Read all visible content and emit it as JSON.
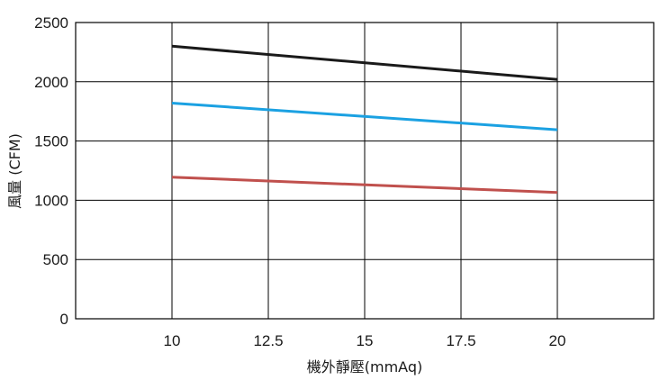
{
  "chart_data": {
    "type": "line",
    "title": "",
    "xlabel": "機外靜壓(mmAq)",
    "ylabel": "風量 (CFM)",
    "xlim": [
      7.5,
      22.5
    ],
    "ylim": [
      0,
      2500
    ],
    "x_ticks": [
      10,
      12.5,
      15,
      17.5,
      20
    ],
    "x_tick_labels": [
      "10",
      "12.5",
      "15",
      "17.5",
      "20"
    ],
    "y_ticks": [
      0,
      500,
      1000,
      1500,
      2000,
      2500
    ],
    "y_tick_labels": [
      "0",
      "500",
      "1000",
      "1500",
      "2000",
      "2500"
    ],
    "grid": true,
    "legend": "none",
    "series": [
      {
        "color": "#1a1a1a",
        "x": [
          10,
          20
        ],
        "values": [
          2300,
          2020
        ]
      },
      {
        "color": "#1ba1e2",
        "x": [
          10,
          20
        ],
        "values": [
          1820,
          1595
        ]
      },
      {
        "color": "#c0504d",
        "x": [
          10,
          20
        ],
        "values": [
          1195,
          1065
        ]
      }
    ]
  }
}
